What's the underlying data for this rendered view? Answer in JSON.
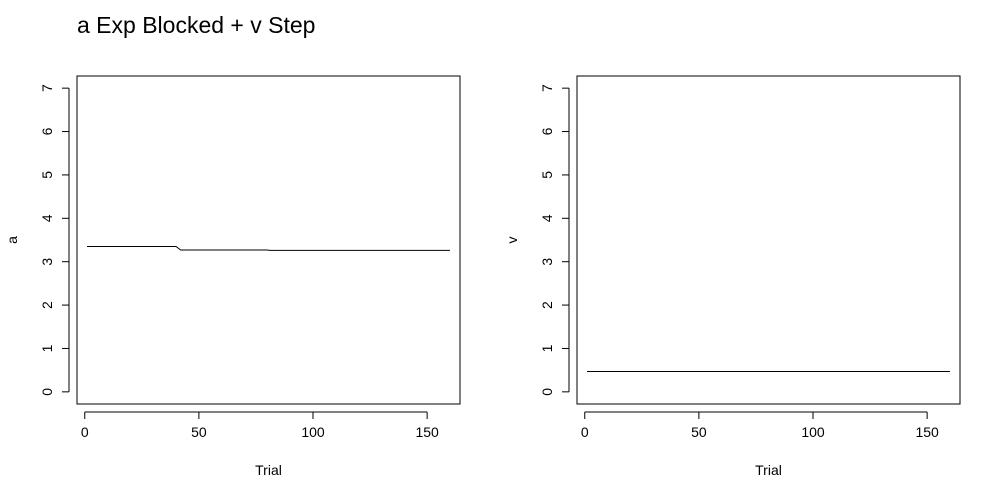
{
  "title": "a Exp Blocked + v Step",
  "chart_data": [
    {
      "type": "line",
      "xlabel": "Trial",
      "ylabel": "a",
      "xlim": [
        -3.4,
        164.4
      ],
      "ylim": [
        -0.28,
        7.28
      ],
      "xticks": [
        0,
        50,
        100,
        150
      ],
      "yticks": [
        0,
        1,
        2,
        3,
        4,
        5,
        6,
        7
      ],
      "grid": false,
      "series": [
        {
          "x": [
            1,
            40,
            41,
            42,
            80,
            81,
            82,
            160
          ],
          "y": [
            3.35,
            3.35,
            3.31,
            3.27,
            3.27,
            3.26,
            3.26,
            3.26
          ]
        }
      ]
    },
    {
      "type": "line",
      "xlabel": "Trial",
      "ylabel": "v",
      "xlim": [
        -3.4,
        164.4
      ],
      "ylim": [
        -0.28,
        7.28
      ],
      "xticks": [
        0,
        50,
        100,
        150
      ],
      "yticks": [
        0,
        1,
        2,
        3,
        4,
        5,
        6,
        7
      ],
      "grid": false,
      "series": [
        {
          "x": [
            1,
            160
          ],
          "y": [
            0.47,
            0.47
          ]
        }
      ]
    }
  ]
}
